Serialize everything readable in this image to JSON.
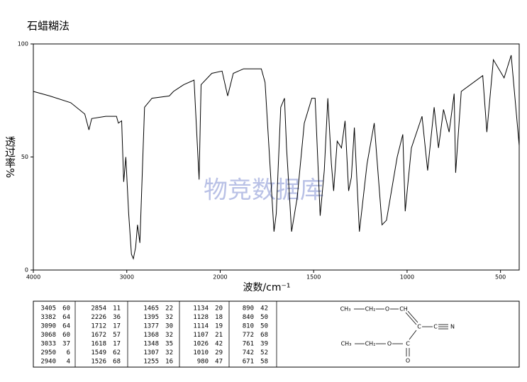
{
  "chart_data": {
    "type": "line",
    "title": "石蜡糊法",
    "x_label": "波数/cm⁻¹",
    "y_label": "透过率%",
    "watermark": "物竞数据库",
    "xscale": "piecewise",
    "xlim": [
      4000,
      400
    ],
    "xticks": [
      4000,
      3000,
      2000,
      1500,
      1000,
      500
    ],
    "ylim": [
      0,
      100
    ],
    "yticks": [
      0,
      50,
      100
    ],
    "color": "#000000",
    "x": [
      4000,
      3825,
      3600,
      3450,
      3405,
      3375,
      3225,
      3110,
      3090,
      3055,
      3033,
      3010,
      2980,
      2950,
      2930,
      2905,
      2885,
      2860,
      2810,
      2730,
      2545,
      2500,
      2390,
      2280,
      2226,
      2205,
      2090,
      1990,
      1960,
      1930,
      1875,
      1780,
      1760,
      1712,
      1700,
      1676,
      1656,
      1645,
      1618,
      1588,
      1550,
      1510,
      1492,
      1465,
      1443,
      1424,
      1405,
      1393,
      1374,
      1351,
      1332,
      1313,
      1298,
      1282,
      1255,
      1214,
      1176,
      1134,
      1110,
      1053,
      1023,
      1010,
      977,
      920,
      890,
      855,
      832,
      805,
      775,
      748,
      740,
      710,
      595,
      573,
      538,
      481,
      443,
      400
    ],
    "values": [
      79,
      77,
      74,
      69,
      62,
      67,
      68,
      68,
      65,
      66,
      39,
      50,
      25,
      7,
      5,
      10,
      20,
      12,
      72,
      76,
      77,
      79,
      82,
      84,
      40,
      82,
      87,
      88,
      77,
      87,
      89,
      89,
      83,
      17,
      25,
      72,
      76,
      54,
      17,
      32,
      65,
      76,
      76,
      24,
      44,
      76,
      47,
      35,
      57,
      54,
      66,
      35,
      41,
      63,
      17,
      47,
      65,
      20,
      22,
      50,
      60,
      26,
      54,
      68,
      44,
      72,
      54,
      71,
      61,
      78,
      43,
      79,
      86,
      61,
      93,
      85,
      95,
      55
    ]
  },
  "table": {
    "rows": [
      [
        3405,
        60,
        2854,
        11,
        1465,
        22,
        1134,
        20,
        890,
        42
      ],
      [
        3382,
        64,
        2226,
        36,
        1395,
        32,
        1128,
        18,
        840,
        50
      ],
      [
        3090,
        64,
        1712,
        17,
        1377,
        30,
        1114,
        19,
        810,
        50
      ],
      [
        3068,
        60,
        1672,
        57,
        1368,
        32,
        1107,
        21,
        772,
        68
      ],
      [
        3033,
        37,
        1618,
        17,
        1348,
        35,
        1026,
        42,
        761,
        39
      ],
      [
        2950,
        6,
        1549,
        62,
        1307,
        32,
        1010,
        29,
        742,
        52
      ],
      [
        2940,
        4,
        1526,
        68,
        1255,
        16,
        980,
        47,
        671,
        58
      ]
    ]
  },
  "structure": {
    "atoms": [
      "CH₃",
      "CH₂",
      "O",
      "CH",
      "C",
      "C",
      "N",
      "CH₃",
      "CH₂",
      "O",
      "C",
      "O"
    ]
  }
}
